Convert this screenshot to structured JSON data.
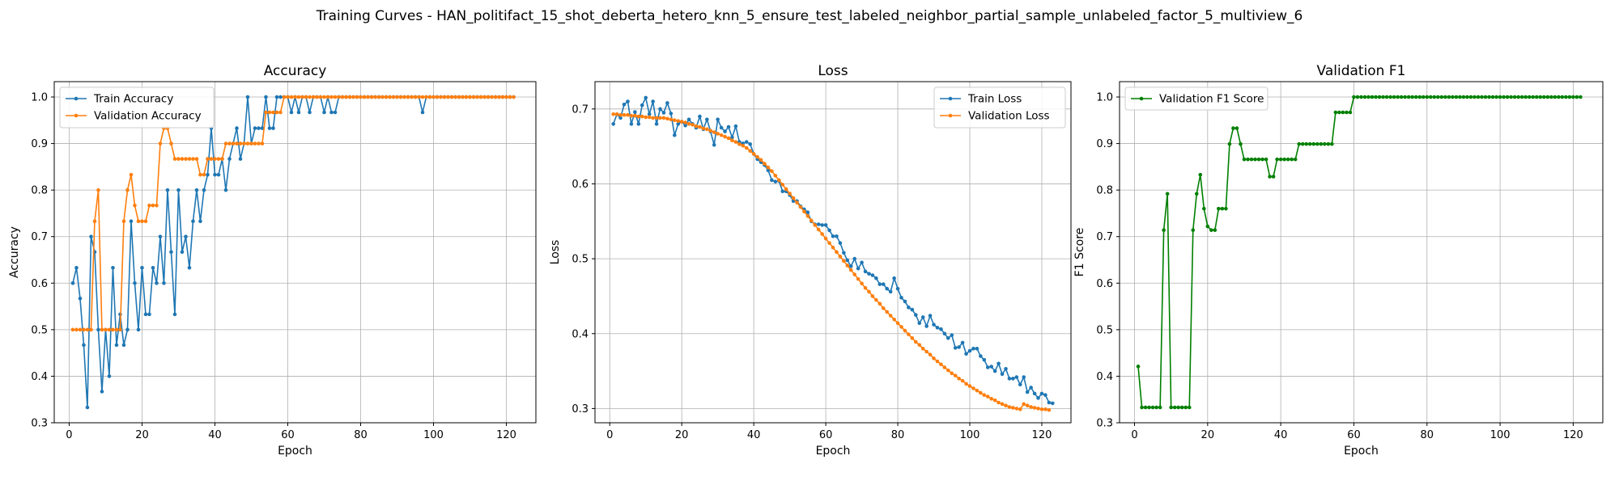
{
  "suptitle": "Training Curves - HAN_politifact_15_shot_deberta_hetero_knn_5_ensure_test_labeled_neighbor_partial_sample_unlabeled_factor_5_multiview_6",
  "colors": {
    "blue": "#1f77b4",
    "orange": "#ff7f0e",
    "green": "#008000",
    "grid": "#b0b0b0"
  },
  "chart_data": [
    {
      "type": "line",
      "title": "Accuracy",
      "xlabel": "Epoch",
      "ylabel": "Accuracy",
      "xlim": [
        -4.1,
        128.1
      ],
      "ylim": [
        0.3,
        1.033
      ],
      "xticks": [
        0,
        20,
        40,
        60,
        80,
        100,
        120
      ],
      "yticks": [
        0.3,
        0.4,
        0.5,
        0.6,
        0.7,
        0.8,
        0.9,
        1.0
      ],
      "ytick_labels": [
        "0.3",
        "0.4",
        "0.5",
        "0.6",
        "0.7",
        "0.8",
        "0.9",
        "1.0"
      ],
      "grid": true,
      "legend": "upper-left",
      "series": [
        {
          "name": "Train Accuracy",
          "color": "#1f77b4",
          "values": [
            0.6,
            0.633,
            0.567,
            0.467,
            0.333,
            0.7,
            0.667,
            0.5,
            0.367,
            0.5,
            0.4,
            0.633,
            0.467,
            0.533,
            0.467,
            0.5,
            0.733,
            0.6,
            0.5,
            0.633,
            0.533,
            0.533,
            0.633,
            0.6,
            0.7,
            0.6,
            0.8,
            0.667,
            0.533,
            0.8,
            0.667,
            0.7,
            0.633,
            0.733,
            0.8,
            0.733,
            0.8,
            0.833,
            0.933,
            0.833,
            0.833,
            0.867,
            0.8,
            0.867,
            0.9,
            0.933,
            0.867,
            0.9,
            1.0,
            0.9,
            0.933,
            0.933,
            0.933,
            1.0,
            0.933,
            0.933,
            1.0,
            1.0,
            1.0,
            1.0,
            0.967,
            1.0,
            0.967,
            1.0,
            1.0,
            0.967,
            1.0,
            1.0,
            1.0,
            0.967,
            1.0,
            0.967,
            0.967,
            1.0,
            1.0,
            1.0,
            1.0,
            1.0,
            1.0,
            1.0,
            1.0,
            1.0,
            1.0,
            1.0,
            1.0,
            1.0,
            1.0,
            1.0,
            1.0,
            1.0,
            1.0,
            1.0,
            1.0,
            1.0,
            1.0,
            1.0,
            0.967,
            1.0,
            1.0,
            1.0,
            1.0,
            1.0,
            1.0,
            1.0,
            1.0,
            1.0,
            1.0,
            1.0,
            1.0,
            1.0,
            1.0,
            1.0,
            1.0,
            1.0,
            1.0,
            1.0,
            1.0,
            1.0,
            1.0,
            1.0,
            1.0,
            1.0
          ]
        },
        {
          "name": "Validation Accuracy",
          "color": "#ff7f0e",
          "values": [
            0.5,
            0.5,
            0.5,
            0.5,
            0.5,
            0.5,
            0.733,
            0.8,
            0.5,
            0.5,
            0.5,
            0.5,
            0.5,
            0.5,
            0.733,
            0.8,
            0.833,
            0.767,
            0.733,
            0.733,
            0.733,
            0.767,
            0.767,
            0.767,
            0.9,
            0.933,
            0.933,
            0.9,
            0.867,
            0.867,
            0.867,
            0.867,
            0.867,
            0.867,
            0.867,
            0.833,
            0.833,
            0.867,
            0.867,
            0.867,
            0.867,
            0.867,
            0.9,
            0.9,
            0.9,
            0.9,
            0.9,
            0.9,
            0.9,
            0.9,
            0.9,
            0.9,
            0.9,
            0.967,
            0.967,
            0.967,
            0.967,
            0.967,
            1.0,
            1.0,
            1.0,
            1.0,
            1.0,
            1.0,
            1.0,
            1.0,
            1.0,
            1.0,
            1.0,
            1.0,
            1.0,
            1.0,
            1.0,
            1.0,
            1.0,
            1.0,
            1.0,
            1.0,
            1.0,
            1.0,
            1.0,
            1.0,
            1.0,
            1.0,
            1.0,
            1.0,
            1.0,
            1.0,
            1.0,
            1.0,
            1.0,
            1.0,
            1.0,
            1.0,
            1.0,
            1.0,
            1.0,
            1.0,
            1.0,
            1.0,
            1.0,
            1.0,
            1.0,
            1.0,
            1.0,
            1.0,
            1.0,
            1.0,
            1.0,
            1.0,
            1.0,
            1.0,
            1.0,
            1.0,
            1.0,
            1.0,
            1.0,
            1.0,
            1.0,
            1.0,
            1.0,
            1.0
          ]
        }
      ]
    },
    {
      "type": "line",
      "title": "Loss",
      "xlabel": "Epoch",
      "ylabel": "Loss",
      "xlim": [
        -4.1,
        128.1
      ],
      "ylim": [
        0.281,
        0.7365
      ],
      "xticks": [
        0,
        20,
        40,
        60,
        80,
        100,
        120
      ],
      "yticks": [
        0.3,
        0.4,
        0.5,
        0.6,
        0.7
      ],
      "ytick_labels": [
        "0.3",
        "0.4",
        "0.5",
        "0.6",
        "0.7"
      ],
      "grid": true,
      "legend": "upper-right",
      "series": [
        {
          "name": "Train Loss",
          "color": "#1f77b4",
          "values": [
            0.68,
            0.693,
            0.688,
            0.706,
            0.71,
            0.68,
            0.696,
            0.68,
            0.705,
            0.715,
            0.693,
            0.71,
            0.68,
            0.7,
            0.695,
            0.708,
            0.694,
            0.665,
            0.68,
            0.683,
            0.678,
            0.686,
            0.68,
            0.675,
            0.69,
            0.673,
            0.686,
            0.67,
            0.652,
            0.686,
            0.675,
            0.67,
            0.676,
            0.662,
            0.677,
            0.656,
            0.654,
            0.656,
            0.653,
            0.64,
            0.633,
            0.629,
            0.625,
            0.618,
            0.605,
            0.603,
            0.604,
            0.59,
            0.59,
            0.585,
            0.577,
            0.577,
            0.57,
            0.566,
            0.562,
            0.55,
            0.546,
            0.546,
            0.545,
            0.545,
            0.538,
            0.53,
            0.53,
            0.521,
            0.508,
            0.498,
            0.49,
            0.5,
            0.487,
            0.495,
            0.483,
            0.48,
            0.478,
            0.474,
            0.466,
            0.466,
            0.46,
            0.456,
            0.474,
            0.46,
            0.448,
            0.443,
            0.435,
            0.432,
            0.425,
            0.414,
            0.422,
            0.41,
            0.424,
            0.412,
            0.408,
            0.406,
            0.4,
            0.394,
            0.398,
            0.381,
            0.382,
            0.388,
            0.373,
            0.377,
            0.38,
            0.38,
            0.37,
            0.365,
            0.355,
            0.356,
            0.35,
            0.36,
            0.346,
            0.353,
            0.34,
            0.34,
            0.342,
            0.332,
            0.342,
            0.322,
            0.328,
            0.32,
            0.314,
            0.32,
            0.318,
            0.308,
            0.307
          ]
        },
        {
          "name": "Validation Loss",
          "color": "#ff7f0e",
          "values": [
            0.693,
            0.693,
            0.692,
            0.692,
            0.692,
            0.691,
            0.691,
            0.69,
            0.69,
            0.689,
            0.689,
            0.688,
            0.688,
            0.688,
            0.688,
            0.687,
            0.686,
            0.685,
            0.684,
            0.683,
            0.682,
            0.68,
            0.679,
            0.677,
            0.676,
            0.674,
            0.673,
            0.671,
            0.669,
            0.667,
            0.665,
            0.663,
            0.661,
            0.658,
            0.656,
            0.653,
            0.651,
            0.648,
            0.644,
            0.64,
            0.636,
            0.632,
            0.627,
            0.622,
            0.617,
            0.611,
            0.605,
            0.599,
            0.593,
            0.587,
            0.581,
            0.575,
            0.569,
            0.563,
            0.557,
            0.551,
            0.545,
            0.539,
            0.533,
            0.527,
            0.521,
            0.515,
            0.509,
            0.503,
            0.497,
            0.491,
            0.485,
            0.479,
            0.473,
            0.467,
            0.461,
            0.456,
            0.45,
            0.445,
            0.44,
            0.434,
            0.429,
            0.424,
            0.419,
            0.414,
            0.409,
            0.404,
            0.399,
            0.394,
            0.389,
            0.385,
            0.38,
            0.376,
            0.372,
            0.367,
            0.363,
            0.359,
            0.355,
            0.351,
            0.347,
            0.344,
            0.34,
            0.337,
            0.333,
            0.33,
            0.327,
            0.324,
            0.321,
            0.318,
            0.316,
            0.313,
            0.311,
            0.308,
            0.306,
            0.304,
            0.302,
            0.301,
            0.3,
            0.299,
            0.306,
            0.304,
            0.302,
            0.301,
            0.3,
            0.299,
            0.299,
            0.298
          ]
        }
      ]
    },
    {
      "type": "line",
      "title": "Validation F1",
      "xlabel": "Epoch",
      "ylabel": "F1 Score",
      "xlim": [
        -4.1,
        128.1
      ],
      "ylim": [
        0.3,
        1.033
      ],
      "xticks": [
        0,
        20,
        40,
        60,
        80,
        100,
        120
      ],
      "yticks": [
        0.3,
        0.4,
        0.5,
        0.6,
        0.7,
        0.8,
        0.9,
        1.0
      ],
      "ytick_labels": [
        "0.3",
        "0.4",
        "0.5",
        "0.6",
        "0.7",
        "0.8",
        "0.9",
        "1.0"
      ],
      "grid": true,
      "legend": "upper-left",
      "series": [
        {
          "name": "Validation F1 Score",
          "color": "#008000",
          "values": [
            0.421,
            0.333,
            0.333,
            0.333,
            0.333,
            0.333,
            0.333,
            0.714,
            0.792,
            0.333,
            0.333,
            0.333,
            0.333,
            0.333,
            0.333,
            0.714,
            0.792,
            0.833,
            0.76,
            0.722,
            0.714,
            0.714,
            0.76,
            0.76,
            0.76,
            0.899,
            0.933,
            0.933,
            0.899,
            0.866,
            0.866,
            0.866,
            0.866,
            0.866,
            0.866,
            0.866,
            0.829,
            0.829,
            0.866,
            0.866,
            0.866,
            0.866,
            0.866,
            0.866,
            0.899,
            0.899,
            0.899,
            0.899,
            0.899,
            0.899,
            0.899,
            0.899,
            0.899,
            0.899,
            0.967,
            0.967,
            0.967,
            0.967,
            0.967,
            1.0,
            1.0,
            1.0,
            1.0,
            1.0,
            1.0,
            1.0,
            1.0,
            1.0,
            1.0,
            1.0,
            1.0,
            1.0,
            1.0,
            1.0,
            1.0,
            1.0,
            1.0,
            1.0,
            1.0,
            1.0,
            1.0,
            1.0,
            1.0,
            1.0,
            1.0,
            1.0,
            1.0,
            1.0,
            1.0,
            1.0,
            1.0,
            1.0,
            1.0,
            1.0,
            1.0,
            1.0,
            1.0,
            1.0,
            1.0,
            1.0,
            1.0,
            1.0,
            1.0,
            1.0,
            1.0,
            1.0,
            1.0,
            1.0,
            1.0,
            1.0,
            1.0,
            1.0,
            1.0,
            1.0,
            1.0,
            1.0,
            1.0,
            1.0,
            1.0,
            1.0,
            1.0,
            1.0
          ]
        }
      ]
    }
  ]
}
